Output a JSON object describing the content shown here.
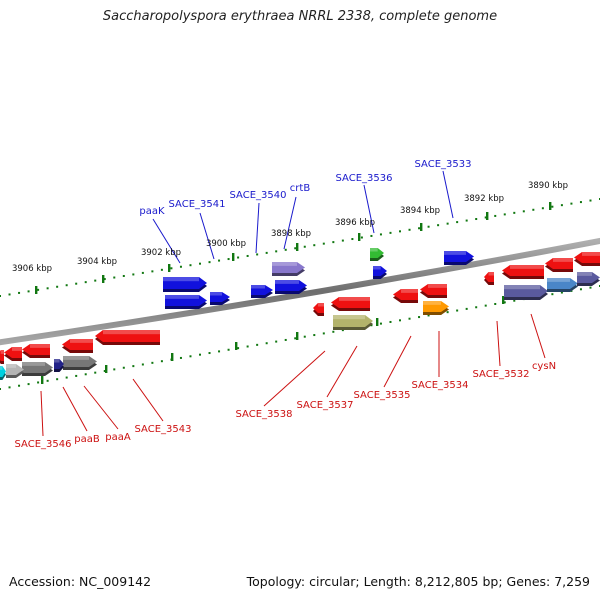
{
  "title": "Saccharopolyspora erythraea NRRL 2338, complete genome",
  "footer": {
    "accession": "Accession: NC_009142",
    "summary": "Topology: circular; Length: 8,212,805 bp; Genes: 7,259"
  },
  "scale_ticks": [
    "3890 kbp",
    "3892 kbp",
    "3894 kbp",
    "3896 kbp",
    "3898 kbp",
    "3900 kbp",
    "3902 kbp",
    "3904 kbp",
    "3906 kbp"
  ],
  "forward_labels": [
    "SACE_3533",
    "SACE_3536",
    "crtB",
    "SACE_3540",
    "SACE_3541",
    "paaK"
  ],
  "reverse_labels": [
    "cysN",
    "SACE_3532",
    "SACE_3534",
    "SACE_3535",
    "SACE_3537",
    "SACE_3538",
    "SACE_3543",
    "paaA",
    "paaB",
    "SACE_3546"
  ],
  "colors": {
    "forward_label": "#1a1acc",
    "reverse_label": "#cc1111",
    "tick": "#117711",
    "backbone": "#8a8a8a",
    "gene_red": "#ee1111",
    "gene_blue": "#1111dd",
    "gene_slate": "#5a5a9e",
    "gene_gray": "#777777",
    "gene_green": "#33bb33",
    "gene_orange": "#ff9900",
    "gene_khaki": "#b3b36b",
    "gene_cyan": "#00d0e0",
    "gene_lightgray": "#b5b5b5",
    "gene_navy": "#222288",
    "gene_steel": "#4a86c8",
    "gene_lavender": "#8877cc"
  }
}
